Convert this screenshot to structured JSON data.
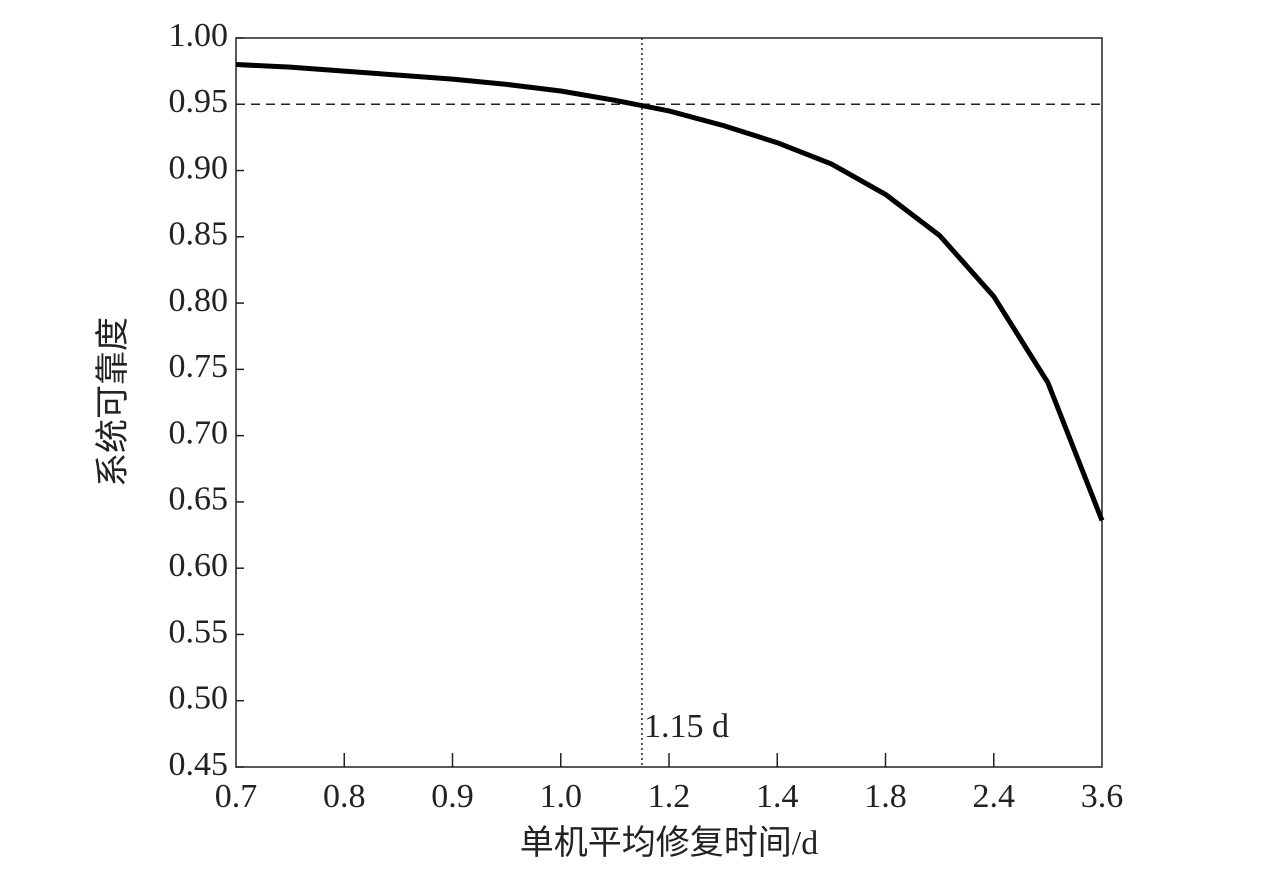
{
  "chart_data": {
    "type": "line",
    "x_label": "单机平均修复时间/d",
    "y_label": "系统可靠度",
    "categories": [
      "0.7",
      null,
      "0.8",
      null,
      "0.9",
      null,
      "1.0",
      null,
      "1.2",
      null,
      "1.4",
      null,
      "1.8",
      null,
      "2.4",
      null,
      "3.6"
    ],
    "values": [
      0.98,
      0.978,
      0.975,
      0.972,
      0.969,
      0.965,
      0.96,
      0.953,
      0.945,
      0.934,
      0.921,
      0.905,
      0.882,
      0.851,
      0.805,
      0.74,
      0.636
    ],
    "color": "#000000",
    "ylim": [
      0.45,
      1.0
    ],
    "yticks": [
      0.45,
      {
        "value": 0.5,
        "label": "0.50"
      },
      0.55,
      {
        "value": 0.6,
        "label": "0.60"
      },
      0.65,
      {
        "value": 0.7,
        "label": "0.70"
      },
      0.75,
      {
        "value": 0.8,
        "label": "0.80"
      },
      0.85,
      {
        "value": 0.9,
        "label": "0.90"
      },
      0.95,
      {
        "value": 1.0,
        "label": "1.00"
      }
    ],
    "hline": {
      "y": 0.95
    },
    "vline": {
      "x": 1.15,
      "label": "1.15 d"
    }
  }
}
